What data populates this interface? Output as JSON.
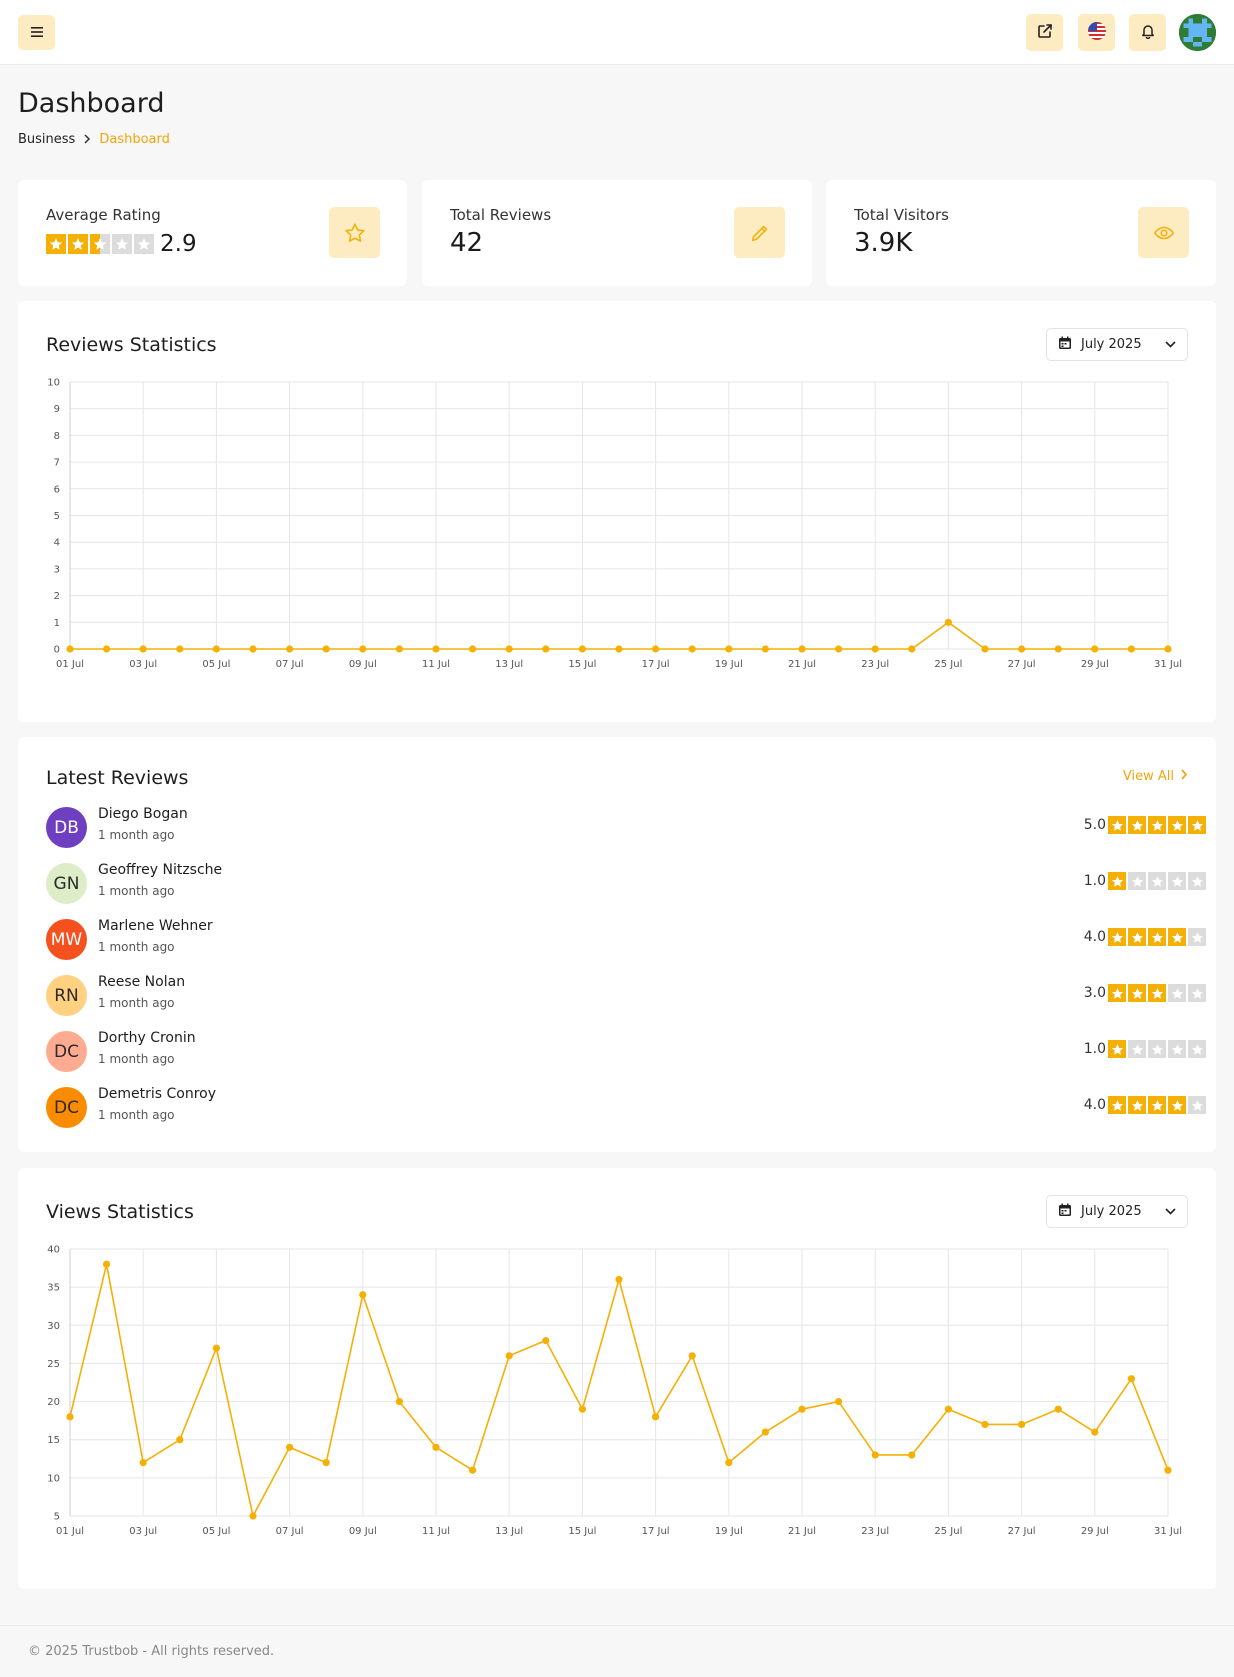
{
  "header": {
    "menu_icon": "hamburger-icon",
    "actions": [
      "external-link-icon",
      "us-flag-icon",
      "bell-icon"
    ],
    "accent": "#fdecc2"
  },
  "page": {
    "title": "Dashboard",
    "breadcrumb": {
      "parent": "Business",
      "current": "Dashboard"
    }
  },
  "stats": {
    "average_rating": {
      "label": "Average Rating",
      "value": "2.9",
      "stars": 2.5
    },
    "total_reviews": {
      "label": "Total Reviews",
      "value": "42"
    },
    "total_visitors": {
      "label": "Total Visitors",
      "value": "3.9K"
    }
  },
  "reviews_chart": {
    "title": "Reviews Statistics",
    "month": "July 2025"
  },
  "views_chart": {
    "title": "Views Statistics",
    "month": "July 2025"
  },
  "latest_reviews": {
    "title": "Latest Reviews",
    "view_all": "View All",
    "items": [
      {
        "initials": "DB",
        "name": "Diego Bogan",
        "time": "1 month ago",
        "score": "5.0",
        "stars": 5,
        "color": "#6f3fc2",
        "text_color": "#ffffff"
      },
      {
        "initials": "GN",
        "name": "Geoffrey Nitzsche",
        "time": "1 month ago",
        "score": "1.0",
        "stars": 1,
        "color": "#dcedc8",
        "text_color": "#2b2b2b"
      },
      {
        "initials": "MW",
        "name": "Marlene Wehner",
        "time": "1 month ago",
        "score": "4.0",
        "stars": 4,
        "color": "#f4511e",
        "text_color": "#ffffff"
      },
      {
        "initials": "RN",
        "name": "Reese Nolan",
        "time": "1 month ago",
        "score": "3.0",
        "stars": 3,
        "color": "#ffd180",
        "text_color": "#2b2b2b"
      },
      {
        "initials": "DC",
        "name": "Dorthy Cronin",
        "time": "1 month ago",
        "score": "1.0",
        "stars": 1,
        "color": "#ffab91",
        "text_color": "#2b2b2b"
      },
      {
        "initials": "DC",
        "name": "Demetris Conroy",
        "time": "1 month ago",
        "score": "4.0",
        "stars": 4,
        "color": "#fb8c00",
        "text_color": "#2b2b2b"
      }
    ]
  },
  "footer": {
    "text": "© 2025 Trustbob - All rights reserved."
  },
  "chart_data": [
    {
      "type": "line",
      "title": "Reviews Statistics",
      "x": [
        "01 Jul",
        "02 Jul",
        "03 Jul",
        "04 Jul",
        "05 Jul",
        "06 Jul",
        "07 Jul",
        "08 Jul",
        "09 Jul",
        "10 Jul",
        "11 Jul",
        "12 Jul",
        "13 Jul",
        "14 Jul",
        "15 Jul",
        "16 Jul",
        "17 Jul",
        "18 Jul",
        "19 Jul",
        "20 Jul",
        "21 Jul",
        "22 Jul",
        "23 Jul",
        "24 Jul",
        "25 Jul",
        "26 Jul",
        "27 Jul",
        "28 Jul",
        "29 Jul",
        "30 Jul",
        "31 Jul"
      ],
      "x_tick_labels": [
        "01 Jul",
        "03 Jul",
        "05 Jul",
        "07 Jul",
        "09 Jul",
        "11 Jul",
        "13 Jul",
        "15 Jul",
        "17 Jul",
        "19 Jul",
        "21 Jul",
        "23 Jul",
        "25 Jul",
        "27 Jul",
        "29 Jul",
        "31 Jul"
      ],
      "values": [
        0,
        0,
        0,
        0,
        0,
        0,
        0,
        0,
        0,
        0,
        0,
        0,
        0,
        0,
        0,
        0,
        0,
        0,
        0,
        0,
        0,
        0,
        0,
        0,
        1,
        0,
        0,
        0,
        0,
        0,
        0
      ],
      "ylim": [
        0,
        10
      ],
      "y_ticks": [
        0,
        1,
        2,
        3,
        4,
        5,
        6,
        7,
        8,
        9,
        10
      ],
      "color": "#f5b005",
      "grid": true
    },
    {
      "type": "line",
      "title": "Views Statistics",
      "x": [
        "01 Jul",
        "02 Jul",
        "03 Jul",
        "04 Jul",
        "05 Jul",
        "06 Jul",
        "07 Jul",
        "08 Jul",
        "09 Jul",
        "10 Jul",
        "11 Jul",
        "12 Jul",
        "13 Jul",
        "14 Jul",
        "15 Jul",
        "16 Jul",
        "17 Jul",
        "18 Jul",
        "19 Jul",
        "20 Jul",
        "21 Jul",
        "22 Jul",
        "23 Jul",
        "24 Jul",
        "25 Jul",
        "26 Jul",
        "27 Jul",
        "28 Jul",
        "29 Jul",
        "30 Jul",
        "31 Jul"
      ],
      "x_tick_labels": [
        "01 Jul",
        "03 Jul",
        "05 Jul",
        "07 Jul",
        "09 Jul",
        "11 Jul",
        "13 Jul",
        "15 Jul",
        "17 Jul",
        "19 Jul",
        "21 Jul",
        "23 Jul",
        "25 Jul",
        "27 Jul",
        "29 Jul",
        "31 Jul"
      ],
      "values": [
        18,
        38,
        12,
        15,
        27,
        5,
        14,
        12,
        34,
        20,
        14,
        11,
        26,
        28,
        19,
        36,
        18,
        26,
        12,
        16,
        19,
        20,
        13,
        13,
        19,
        17,
        17,
        19,
        16,
        23,
        11
      ],
      "ylim": [
        5,
        40
      ],
      "y_ticks": [
        5,
        10,
        15,
        20,
        25,
        30,
        35,
        40
      ],
      "color": "#f5b005",
      "grid": true
    }
  ]
}
